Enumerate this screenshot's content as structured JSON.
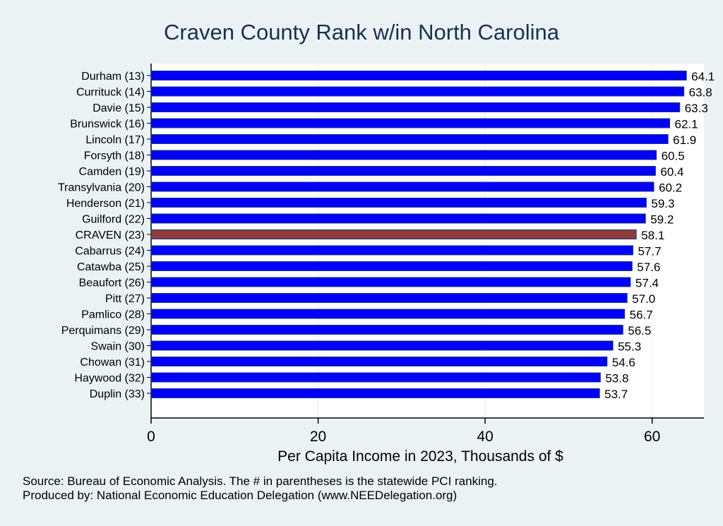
{
  "chart_data": {
    "type": "bar",
    "orientation": "horizontal",
    "title": "Craven County Rank w/in North Carolina",
    "xlabel": "Per Capita Income in 2023, Thousands of $",
    "ylabel": "",
    "xlim": [
      0,
      66.2
    ],
    "xticks": [
      0,
      20,
      40,
      60
    ],
    "grid": true,
    "categories": [
      "Durham (13)",
      "Currituck (14)",
      "Davie (15)",
      "Brunswick (16)",
      "Lincoln (17)",
      "Forsyth (18)",
      "Camden (19)",
      "Transylvania (20)",
      "Henderson (21)",
      "Guilford (22)",
      "CRAVEN (23)",
      "Cabarrus (24)",
      "Catawba (25)",
      "Beaufort (26)",
      "Pitt (27)",
      "Pamlico (28)",
      "Perquimans (29)",
      "Swain (30)",
      "Chowan (31)",
      "Haywood (32)",
      "Duplin (33)"
    ],
    "values": [
      64.1,
      63.8,
      63.3,
      62.1,
      61.9,
      60.5,
      60.4,
      60.2,
      59.3,
      59.2,
      58.1,
      57.7,
      57.6,
      57.4,
      57.0,
      56.7,
      56.5,
      55.3,
      54.6,
      53.8,
      53.7
    ],
    "value_labels": [
      "64.1",
      "63.8",
      "63.3",
      "62.1",
      "61.9",
      "60.5",
      "60.4",
      "60.2",
      "59.3",
      "59.2",
      "58.1",
      "57.7",
      "57.6",
      "57.4",
      "57.0",
      "56.7",
      "56.5",
      "55.3",
      "54.6",
      "53.8",
      "53.7"
    ],
    "highlight": "CRAVEN (23)",
    "colors": {
      "bar": "#0000ff",
      "highlight": "#903c3c",
      "bar_edge": "#1a3a7a"
    }
  },
  "notes": {
    "source": "Source: Bureau of Economic Analysis. The # in parentheses is the statewide PCI ranking.",
    "produced": "Produced by: National Economic Education Delegation (www.NEEDelegation.org)"
  }
}
